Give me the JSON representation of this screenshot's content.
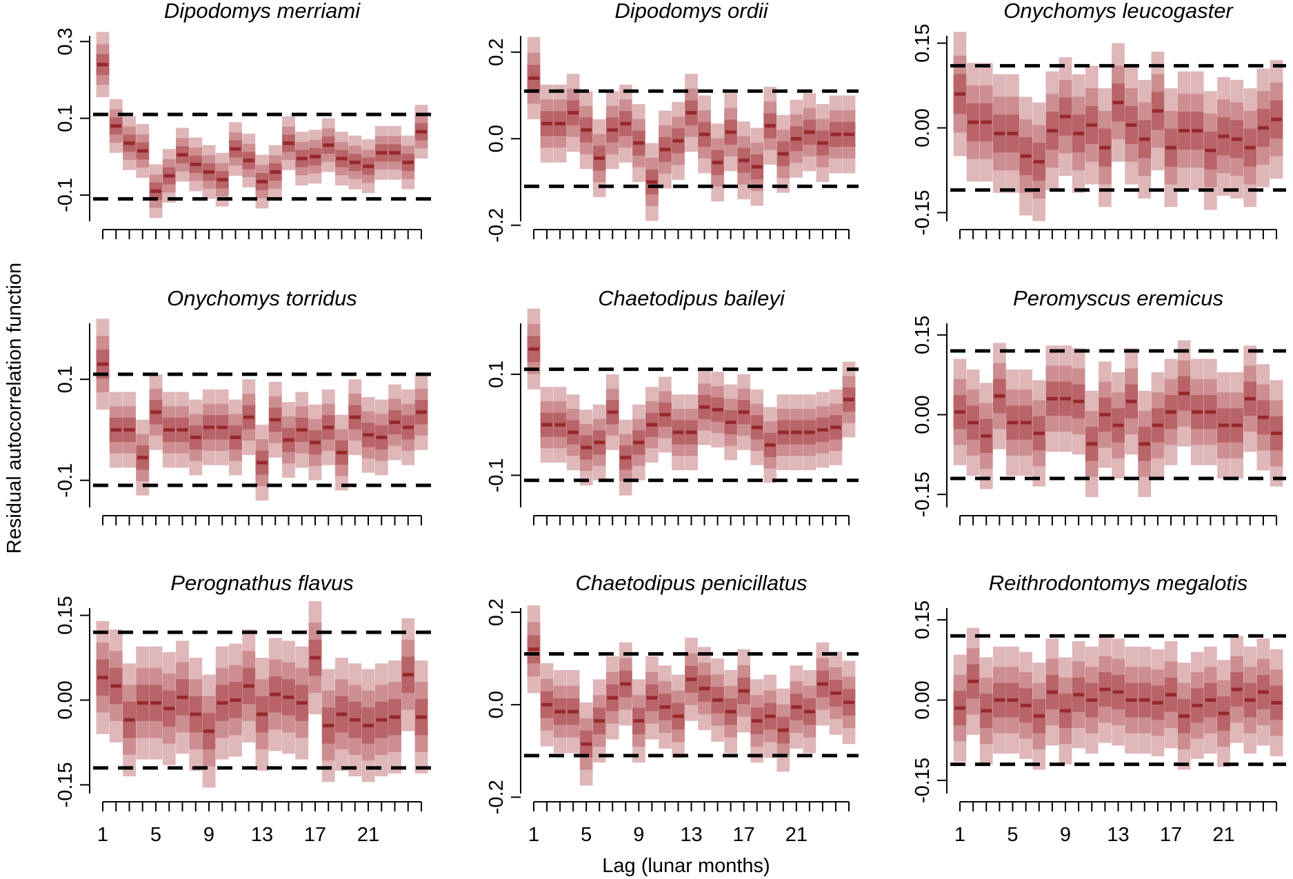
{
  "colors": {
    "band_outer": "#dfb7b9",
    "band_mid": "#cd8e91",
    "band_inner": "#b86468",
    "median": "#96282c",
    "threshold": "#000000",
    "axis": "#000000"
  },
  "chart_data": {
    "type": "interval-panels",
    "xlabel": "Lag (lunar months)",
    "ylabel": "Residual autocorrelation function",
    "x_ticks": [
      1,
      5,
      9,
      13,
      17,
      21
    ],
    "lags": [
      1,
      2,
      3,
      4,
      5,
      6,
      7,
      8,
      9,
      10,
      11,
      12,
      13,
      14,
      15,
      16,
      17,
      18,
      19,
      20,
      21,
      22,
      23,
      24,
      25
    ],
    "panels": [
      {
        "title": "Dipodomys merriami",
        "ylim": [
          -0.19,
          0.34
        ],
        "yticks": [
          -0.1,
          0.1,
          0.3
        ],
        "ytick_labels": [
          "-0.1",
          "0.1",
          "0.3"
        ],
        "threshold": 0.11,
        "median": [
          0.24,
          0.08,
          0.035,
          0.015,
          -0.09,
          -0.05,
          0.005,
          -0.02,
          -0.04,
          -0.06,
          0.02,
          -0.01,
          -0.065,
          -0.04,
          0.035,
          -0.005,
          0.0,
          0.03,
          -0.005,
          -0.015,
          -0.025,
          0.01,
          0.01,
          -0.015,
          0.065
        ],
        "half_width": [
          0.085,
          0.07,
          0.07,
          0.07,
          0.07,
          0.07,
          0.07,
          0.07,
          0.07,
          0.07,
          0.07,
          0.07,
          0.07,
          0.07,
          0.07,
          0.07,
          0.07,
          0.07,
          0.07,
          0.07,
          0.07,
          0.07,
          0.07,
          0.07,
          0.07
        ]
      },
      {
        "title": "Dipodomys ordii",
        "ylim": [
          -0.21,
          0.26
        ],
        "yticks": [
          -0.2,
          0.0,
          0.2
        ],
        "ytick_labels": [
          "-0.2",
          "0.0",
          "0.2"
        ],
        "threshold": 0.11,
        "median": [
          0.14,
          0.035,
          0.035,
          0.06,
          0.02,
          -0.045,
          0.02,
          0.035,
          -0.01,
          -0.1,
          -0.025,
          -0.005,
          0.06,
          0.01,
          -0.055,
          0.015,
          -0.05,
          -0.065,
          0.03,
          -0.035,
          0.0,
          0.015,
          -0.01,
          0.01,
          0.01
        ],
        "half_width": [
          0.095,
          0.09,
          0.09,
          0.09,
          0.09,
          0.09,
          0.09,
          0.09,
          0.09,
          0.09,
          0.09,
          0.09,
          0.09,
          0.09,
          0.09,
          0.09,
          0.09,
          0.09,
          0.09,
          0.09,
          0.09,
          0.09,
          0.09,
          0.09,
          0.09
        ]
      },
      {
        "title": "Onychomys leucogaster",
        "ylim": [
          -0.18,
          0.18
        ],
        "yticks": [
          -0.15,
          0.0,
          0.15
        ],
        "ytick_labels": [
          "-0.15",
          "0.00",
          "0.15"
        ],
        "threshold": 0.11,
        "median": [
          0.06,
          0.01,
          0.01,
          -0.01,
          -0.01,
          -0.05,
          -0.06,
          -0.005,
          0.02,
          -0.01,
          0.005,
          -0.035,
          0.045,
          0.005,
          -0.02,
          0.03,
          -0.035,
          -0.005,
          -0.005,
          -0.04,
          -0.015,
          -0.02,
          -0.035,
          0.0,
          0.015
        ],
        "half_width": [
          0.11,
          0.105,
          0.105,
          0.105,
          0.105,
          0.105,
          0.105,
          0.105,
          0.105,
          0.105,
          0.105,
          0.105,
          0.105,
          0.105,
          0.105,
          0.105,
          0.105,
          0.105,
          0.105,
          0.105,
          0.105,
          0.105,
          0.105,
          0.105,
          0.105
        ]
      },
      {
        "title": "Onychomys torridus",
        "ylim": [
          -0.17,
          0.23
        ],
        "yticks": [
          -0.1,
          0.1
        ],
        "ytick_labels": [
          "-0.1",
          "0.1"
        ],
        "threshold": 0.11,
        "median": [
          0.13,
          0.0,
          0.0,
          -0.055,
          0.035,
          0.0,
          0.0,
          -0.015,
          0.005,
          0.005,
          -0.015,
          0.025,
          -0.065,
          0.02,
          -0.02,
          0.0,
          -0.025,
          0.005,
          -0.045,
          0.025,
          -0.01,
          -0.015,
          0.015,
          0.005,
          0.035
        ],
        "half_width": [
          0.09,
          0.075,
          0.075,
          0.075,
          0.075,
          0.075,
          0.075,
          0.075,
          0.075,
          0.075,
          0.075,
          0.075,
          0.075,
          0.075,
          0.075,
          0.075,
          0.075,
          0.075,
          0.075,
          0.075,
          0.075,
          0.075,
          0.075,
          0.075,
          0.075
        ]
      },
      {
        "title": "Chaetodipus baileyi",
        "ylim": [
          -0.18,
          0.22
        ],
        "yticks": [
          -0.1,
          0.1
        ],
        "ytick_labels": [
          "-0.1",
          "0.1"
        ],
        "threshold": 0.11,
        "median": [
          0.15,
          0.0,
          0.0,
          -0.015,
          -0.045,
          -0.035,
          0.025,
          -0.065,
          -0.035,
          0.0,
          0.02,
          -0.015,
          -0.015,
          0.035,
          0.03,
          0.005,
          0.025,
          -0.005,
          -0.04,
          -0.015,
          -0.015,
          -0.015,
          -0.01,
          -0.005,
          0.05
        ],
        "half_width": [
          0.08,
          0.075,
          0.075,
          0.075,
          0.075,
          0.075,
          0.075,
          0.075,
          0.075,
          0.075,
          0.075,
          0.075,
          0.075,
          0.075,
          0.075,
          0.075,
          0.075,
          0.075,
          0.075,
          0.075,
          0.075,
          0.075,
          0.075,
          0.075,
          0.075
        ]
      },
      {
        "title": "Peromyscus eremicus",
        "ylim": [
          -0.19,
          0.19
        ],
        "yticks": [
          -0.15,
          0.0,
          0.15
        ],
        "ytick_labels": [
          "-0.15",
          "0.00",
          "0.15"
        ],
        "threshold": 0.12,
        "median": [
          0.005,
          -0.015,
          -0.04,
          0.035,
          -0.015,
          -0.015,
          -0.035,
          0.03,
          0.03,
          0.025,
          -0.055,
          0.0,
          -0.02,
          0.025,
          -0.055,
          -0.02,
          0.005,
          0.04,
          0.005,
          0.005,
          -0.02,
          -0.02,
          0.03,
          -0.005,
          -0.035
        ],
        "half_width": [
          0.1,
          0.1,
          0.1,
          0.1,
          0.1,
          0.1,
          0.1,
          0.1,
          0.1,
          0.1,
          0.1,
          0.1,
          0.1,
          0.1,
          0.1,
          0.1,
          0.1,
          0.1,
          0.1,
          0.1,
          0.1,
          0.1,
          0.1,
          0.1,
          0.1
        ]
      },
      {
        "title": "Perognathus flavus",
        "ylim": [
          -0.18,
          0.18
        ],
        "yticks": [
          -0.15,
          0.0,
          0.15
        ],
        "ytick_labels": [
          "-0.15",
          "0.00",
          "0.15"
        ],
        "threshold": 0.12,
        "median": [
          0.04,
          0.025,
          -0.035,
          -0.005,
          -0.005,
          -0.015,
          0.005,
          -0.025,
          -0.055,
          -0.005,
          0.0,
          0.025,
          -0.025,
          0.01,
          0.005,
          -0.005,
          0.075,
          -0.045,
          -0.025,
          -0.035,
          -0.045,
          -0.035,
          -0.03,
          0.045,
          -0.03
        ],
        "half_width": [
          0.1,
          0.1,
          0.1,
          0.1,
          0.1,
          0.1,
          0.1,
          0.1,
          0.1,
          0.1,
          0.1,
          0.1,
          0.1,
          0.1,
          0.1,
          0.1,
          0.1,
          0.1,
          0.1,
          0.1,
          0.1,
          0.1,
          0.1,
          0.1,
          0.1
        ]
      },
      {
        "title": "Chaetodipus penicillatus",
        "ylim": [
          -0.21,
          0.23
        ],
        "yticks": [
          -0.2,
          0.0,
          0.2
        ],
        "ytick_labels": [
          "-0.2",
          "0.0",
          "0.2"
        ],
        "threshold": 0.11,
        "median": [
          0.12,
          0.0,
          -0.015,
          -0.015,
          -0.085,
          -0.035,
          0.015,
          0.045,
          -0.035,
          0.015,
          -0.005,
          -0.025,
          0.055,
          0.035,
          0.01,
          -0.015,
          0.03,
          -0.035,
          -0.025,
          -0.055,
          -0.005,
          -0.015,
          0.045,
          0.025,
          0.005
        ],
        "half_width": [
          0.095,
          0.09,
          0.09,
          0.09,
          0.09,
          0.09,
          0.09,
          0.09,
          0.09,
          0.09,
          0.09,
          0.09,
          0.09,
          0.09,
          0.09,
          0.09,
          0.09,
          0.09,
          0.09,
          0.09,
          0.09,
          0.09,
          0.09,
          0.09,
          0.09
        ]
      },
      {
        "title": "Reithrodontomys megalotis",
        "ylim": [
          -0.19,
          0.19
        ],
        "yticks": [
          -0.15,
          0.0,
          0.15
        ],
        "ytick_labels": [
          "-0.15",
          "0.00",
          "0.15"
        ],
        "threshold": 0.12,
        "median": [
          -0.015,
          0.035,
          -0.02,
          0.0,
          0.0,
          -0.01,
          -0.03,
          0.015,
          -0.02,
          0.01,
          0.0,
          0.02,
          0.015,
          0.0,
          0.0,
          -0.005,
          0.01,
          -0.03,
          -0.01,
          0.0,
          -0.025,
          0.02,
          0.0,
          0.015,
          -0.005
        ],
        "half_width": [
          0.1,
          0.1,
          0.1,
          0.1,
          0.1,
          0.1,
          0.1,
          0.1,
          0.1,
          0.1,
          0.1,
          0.1,
          0.1,
          0.1,
          0.1,
          0.1,
          0.1,
          0.1,
          0.1,
          0.1,
          0.1,
          0.1,
          0.1,
          0.1,
          0.1
        ]
      }
    ]
  }
}
